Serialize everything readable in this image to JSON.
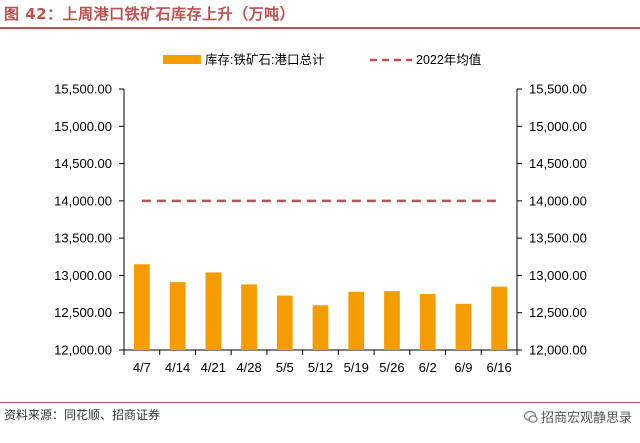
{
  "header": {
    "title": "图 42：上周港口铁矿石库存上升（万吨）"
  },
  "footer": {
    "source": "资料来源：同花顺、招商证券",
    "watermark": "招商宏观静思录"
  },
  "colors": {
    "bar": "#f59c00",
    "avg_line": "#c0504d",
    "axis": "#000000",
    "text": "#000000"
  },
  "chart_data": {
    "type": "bar",
    "categories": [
      "4/7",
      "4/14",
      "4/21",
      "4/28",
      "5/5",
      "5/12",
      "5/19",
      "5/26",
      "6/2",
      "6/9",
      "6/16"
    ],
    "series": [
      {
        "name": "库存:铁矿石:港口总计",
        "type": "bar",
        "values": [
          13150,
          12910,
          13040,
          12880,
          12730,
          12600,
          12780,
          12790,
          12750,
          12620,
          12850
        ]
      },
      {
        "name": "2022年均值",
        "type": "line",
        "style": "dashed",
        "values": [
          14000,
          14000,
          14000,
          14000,
          14000,
          14000,
          14000,
          14000,
          14000,
          14000,
          14000
        ]
      }
    ],
    "ylim": [
      12000,
      15500
    ],
    "yticks": [
      "12,000.00",
      "12,500.00",
      "13,000.00",
      "13,500.00",
      "14,000.00",
      "14,500.00",
      "15,000.00",
      "15,500.00"
    ],
    "ytick_values": [
      12000,
      12500,
      13000,
      13500,
      14000,
      14500,
      15000,
      15500
    ],
    "legend_position": "top",
    "grid": false
  }
}
